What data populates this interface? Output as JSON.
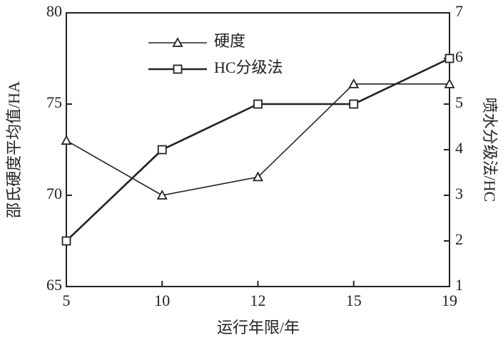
{
  "chart_data": {
    "type": "line",
    "x_label": "运行年限/年",
    "y_label": "邵氏硬度平均值/HA",
    "y2_label": "喷水分级法/HC",
    "categories": [
      "5",
      "10",
      "12",
      "15",
      "19"
    ],
    "series": [
      {
        "name": "硬度",
        "color": "#222222",
        "marker": "triangle",
        "values": [
          73,
          70,
          71,
          76.1,
          76.1
        ]
      },
      {
        "name": "HC分级法",
        "color": "#222222",
        "marker": "square",
        "axis": "y2",
        "values": [
          2,
          4,
          5,
          5,
          6
        ]
      }
    ],
    "ylim": [
      65,
      80
    ],
    "yticks": [
      65,
      70,
      75,
      80
    ],
    "y2lim": [
      1,
      7
    ],
    "y2ticks": [
      1,
      2,
      3,
      4,
      5,
      6,
      7
    ],
    "legend": "upper-left"
  }
}
